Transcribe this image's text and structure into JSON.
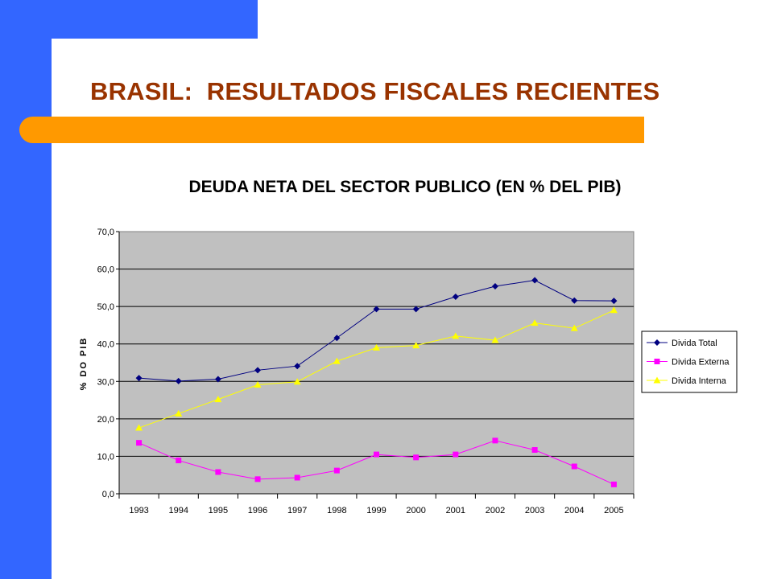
{
  "slide": {
    "title": "BRASIL:  RESULTADOS FISCALES RECIENTES"
  },
  "colors": {
    "side_band": "#3366ff",
    "accent_bar": "#ff9900",
    "title_text": "#993300",
    "plot_area": "#c0c0c0"
  },
  "chart_data": {
    "type": "line",
    "title": "DEUDA NETA DEL SECTOR PUBLICO (EN % DEL PIB)",
    "xlabel": "",
    "ylabel": "% DO PIB",
    "categories": [
      "1993",
      "1994",
      "1995",
      "1996",
      "1997",
      "1998",
      "1999",
      "2000",
      "2001",
      "2002",
      "2003",
      "2004",
      "2005"
    ],
    "y_ticks": [
      "0,0",
      "10,0",
      "20,0",
      "30,0",
      "40,0",
      "50,0",
      "60,0",
      "70,0"
    ],
    "ylim": [
      0,
      70
    ],
    "grid": "horizontal",
    "legend_position": "right",
    "series": [
      {
        "name": "Divida Total",
        "color": "#000080",
        "marker": "diamond",
        "values": [
          30.9,
          30.1,
          30.6,
          33.0,
          34.1,
          41.6,
          49.3,
          49.3,
          52.6,
          55.4,
          57.0,
          51.6,
          51.5
        ]
      },
      {
        "name": "Divida Externa",
        "color": "#ff00ff",
        "marker": "square",
        "values": [
          13.6,
          8.9,
          5.8,
          3.9,
          4.3,
          6.2,
          10.5,
          9.7,
          10.5,
          14.2,
          11.7,
          7.3,
          2.5
        ]
      },
      {
        "name": "Divida Interna",
        "color": "#ffff00",
        "marker": "triangle",
        "values": [
          17.6,
          21.4,
          25.2,
          29.1,
          29.9,
          35.4,
          39.0,
          39.6,
          42.1,
          41.0,
          45.6,
          44.2,
          49.0
        ]
      }
    ]
  }
}
